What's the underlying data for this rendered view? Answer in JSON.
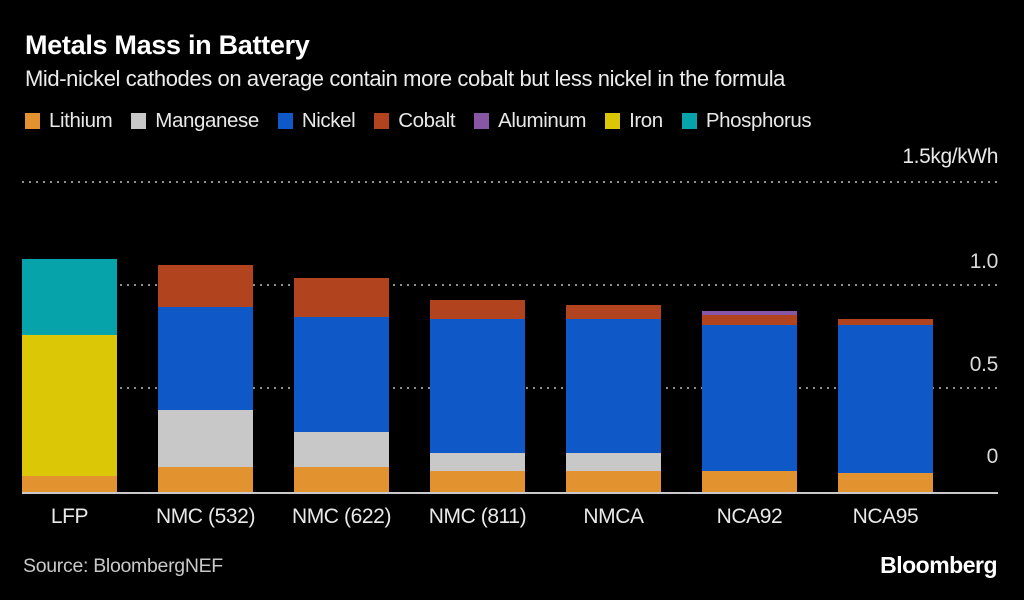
{
  "header": {
    "title": "Metals Mass in Battery",
    "subtitle": "Mid-nickel cathodes on average contain more cobalt but less nickel in the formula"
  },
  "legend": [
    {
      "label": "Lithium",
      "color": "#E2922E"
    },
    {
      "label": "Manganese",
      "color": "#C8C8C8"
    },
    {
      "label": "Nickel",
      "color": "#0F58C8"
    },
    {
      "label": "Cobalt",
      "color": "#B2431F"
    },
    {
      "label": "Aluminum",
      "color": "#8757A5"
    },
    {
      "label": "Iron",
      "color": "#DCC707"
    },
    {
      "label": "Phosphorus",
      "color": "#06A3AB"
    }
  ],
  "axis": {
    "unit_label": "1.5kg/kWh",
    "ticks": [
      "1.0",
      "0.5",
      "0"
    ]
  },
  "chart_data": {
    "type": "bar",
    "stacked": true,
    "title": "Metals Mass in Battery",
    "ylabel": "kg/kWh",
    "ylim": [
      0,
      1.5
    ],
    "gridlines": [
      0.5,
      1.0,
      1.5
    ],
    "grid_style": "dotted",
    "legend_position": "top",
    "categories": [
      "LFP",
      "NMC (532)",
      "NMC (622)",
      "NMC (811)",
      "NMCA",
      "NCA92",
      "NCA95"
    ],
    "series": [
      {
        "name": "Lithium",
        "color": "#E2922E",
        "values": [
          0.08,
          0.12,
          0.12,
          0.1,
          0.1,
          0.1,
          0.09
        ]
      },
      {
        "name": "Manganese",
        "color": "#C8C8C8",
        "values": [
          0,
          0.28,
          0.17,
          0.09,
          0.09,
          0,
          0
        ]
      },
      {
        "name": "Iron",
        "color": "#DCC707",
        "values": [
          0.68,
          0,
          0,
          0,
          0,
          0,
          0
        ]
      },
      {
        "name": "Phosphorus",
        "color": "#06A3AB",
        "values": [
          0.37,
          0,
          0,
          0,
          0,
          0,
          0
        ]
      },
      {
        "name": "Nickel",
        "color": "#0F58C8",
        "values": [
          0,
          0.5,
          0.56,
          0.65,
          0.65,
          0.71,
          0.72
        ]
      },
      {
        "name": "Cobalt",
        "color": "#B2431F",
        "values": [
          0,
          0.2,
          0.19,
          0.09,
          0.07,
          0.05,
          0.03
        ]
      },
      {
        "name": "Aluminum",
        "color": "#8757A5",
        "values": [
          0,
          0,
          0,
          0,
          0,
          0.02,
          0
        ]
      }
    ]
  },
  "footer": {
    "source": "Source: BloombergNEF",
    "logo": "Bloomberg"
  }
}
